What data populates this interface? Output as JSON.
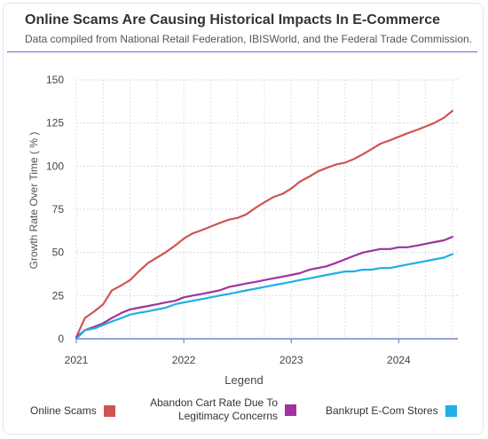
{
  "header": {
    "title": "Online Scams Are Causing Historical Impacts In E-Commerce",
    "subtitle": "Data compiled from National Retail Federation, IBISWorld, and the Federal Trade Commission."
  },
  "chart_data": {
    "type": "line",
    "ylabel": "Growth Rate Over Time ( % )",
    "legend_title": "Legend",
    "ylim": [
      0,
      150
    ],
    "yticks": [
      0,
      25,
      50,
      75,
      100,
      125,
      150
    ],
    "xlim": [
      2021.0,
      2024.55
    ],
    "xticks": [
      2021,
      2022,
      2023,
      2024
    ],
    "xtick_labels": [
      "2021",
      "2022",
      "2023",
      "2024"
    ],
    "grid": true,
    "legend_position": "bottom",
    "series": [
      {
        "name": "Online Scams",
        "color": "#d05353",
        "x": [
          2021.0,
          2021.08,
          2021.17,
          2021.25,
          2021.33,
          2021.42,
          2021.5,
          2021.58,
          2021.67,
          2021.75,
          2021.83,
          2021.92,
          2022.0,
          2022.08,
          2022.17,
          2022.25,
          2022.33,
          2022.42,
          2022.5,
          2022.58,
          2022.67,
          2022.75,
          2022.83,
          2022.92,
          2023.0,
          2023.08,
          2023.17,
          2023.25,
          2023.33,
          2023.42,
          2023.5,
          2023.58,
          2023.67,
          2023.75,
          2023.83,
          2023.92,
          2024.0,
          2024.08,
          2024.17,
          2024.25,
          2024.33,
          2024.42,
          2024.5
        ],
        "y": [
          1,
          12,
          16,
          20,
          28,
          31,
          34,
          39,
          44,
          47,
          50,
          54,
          58,
          61,
          63,
          65,
          67,
          69,
          70,
          72,
          76,
          79,
          82,
          84,
          87,
          91,
          94,
          97,
          99,
          101,
          102,
          104,
          107,
          110,
          113,
          115,
          117,
          119,
          121,
          123,
          125,
          128,
          132
        ]
      },
      {
        "name": "Abandon Cart Rate Due To Legitimacy Concerns",
        "color": "#a0339e",
        "x": [
          2021.0,
          2021.08,
          2021.17,
          2021.25,
          2021.33,
          2021.42,
          2021.5,
          2021.58,
          2021.67,
          2021.75,
          2021.83,
          2021.92,
          2022.0,
          2022.08,
          2022.17,
          2022.25,
          2022.33,
          2022.42,
          2022.5,
          2022.58,
          2022.67,
          2022.75,
          2022.83,
          2022.92,
          2023.0,
          2023.08,
          2023.17,
          2023.25,
          2023.33,
          2023.42,
          2023.5,
          2023.58,
          2023.67,
          2023.75,
          2023.83,
          2023.92,
          2024.0,
          2024.08,
          2024.17,
          2024.25,
          2024.33,
          2024.42,
          2024.5
        ],
        "y": [
          1,
          5,
          7,
          9,
          12,
          15,
          17,
          18,
          19,
          20,
          21,
          22,
          24,
          25,
          26,
          27,
          28,
          30,
          31,
          32,
          33,
          34,
          35,
          36,
          37,
          38,
          40,
          41,
          42,
          44,
          46,
          48,
          50,
          51,
          52,
          52,
          53,
          53,
          54,
          55,
          56,
          57,
          59
        ]
      },
      {
        "name": "Bankrupt E-Com Stores",
        "color": "#1faee8",
        "x": [
          2021.0,
          2021.08,
          2021.17,
          2021.25,
          2021.33,
          2021.42,
          2021.5,
          2021.58,
          2021.67,
          2021.75,
          2021.83,
          2021.92,
          2022.0,
          2022.08,
          2022.17,
          2022.25,
          2022.33,
          2022.42,
          2022.5,
          2022.58,
          2022.67,
          2022.75,
          2022.83,
          2022.92,
          2023.0,
          2023.08,
          2023.17,
          2023.25,
          2023.33,
          2023.42,
          2023.5,
          2023.58,
          2023.67,
          2023.75,
          2023.83,
          2023.92,
          2024.0,
          2024.08,
          2024.17,
          2024.25,
          2024.33,
          2024.42,
          2024.5
        ],
        "y": [
          0,
          5,
          6,
          8,
          10,
          12,
          14,
          15,
          16,
          17,
          18,
          20,
          21,
          22,
          23,
          24,
          25,
          26,
          27,
          28,
          29,
          30,
          31,
          32,
          33,
          34,
          35,
          36,
          37,
          38,
          39,
          39,
          40,
          40,
          41,
          41,
          42,
          43,
          44,
          45,
          46,
          47,
          49
        ]
      }
    ]
  }
}
